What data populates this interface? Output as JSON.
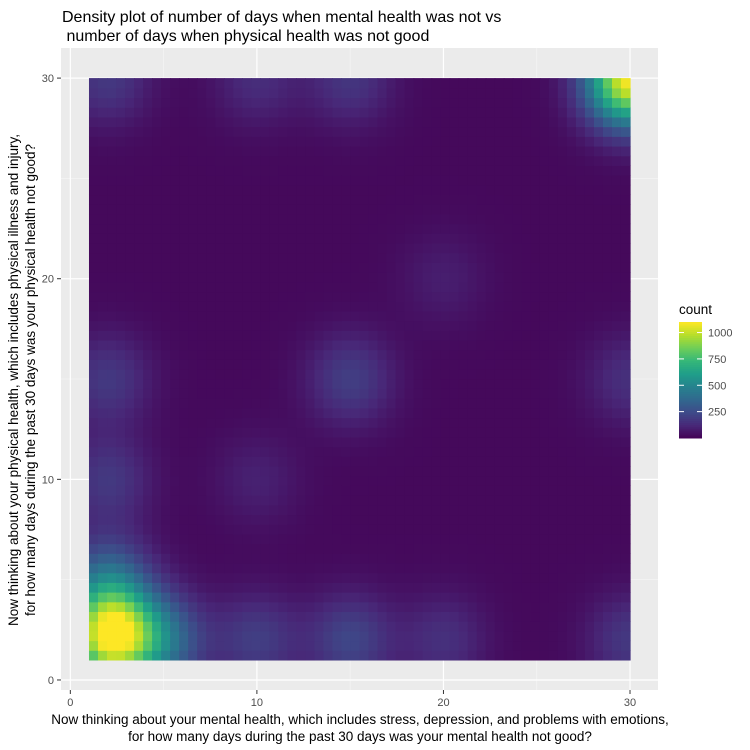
{
  "chart_data": {
    "type": "heatmap",
    "title": "Density plot of number of days when mental health was not vs\n number of days when physical health was not good",
    "xlabel": "Now thinking about your mental health, which includes stress, depression, and problems with emotions,\nfor how many days during the past 30 days was your mental health not good?",
    "ylabel": "Now thinking about your physical health, which includes physical illness and injury,\nfor how many days during the past 30 days was your physical health not good?",
    "xlim": [
      -0.5,
      31.5
    ],
    "ylim": [
      -0.5,
      31.5
    ],
    "x_ticks": [
      0,
      10,
      20,
      30
    ],
    "y_ticks": [
      0,
      10,
      20,
      30
    ],
    "data_extent": {
      "x": [
        1,
        30
      ],
      "y": [
        1,
        30
      ]
    },
    "grid": true,
    "colormap": "viridis",
    "legend": {
      "title": "count",
      "position": "right",
      "range": [
        0,
        1100
      ],
      "ticks": [
        250,
        500,
        750,
        1000
      ]
    },
    "density_peaks": [
      {
        "x": 2.2,
        "y": 2.2,
        "count": 1100
      },
      {
        "x": 30,
        "y": 30,
        "count": 1100
      },
      {
        "x": 5,
        "y": 2,
        "count": 350
      },
      {
        "x": 2,
        "y": 5,
        "count": 330
      },
      {
        "x": 2,
        "y": 10,
        "count": 180
      },
      {
        "x": 10,
        "y": 2,
        "count": 200
      },
      {
        "x": 15,
        "y": 2,
        "count": 230
      },
      {
        "x": 20,
        "y": 2,
        "count": 150
      },
      {
        "x": 30,
        "y": 2,
        "count": 180
      },
      {
        "x": 15,
        "y": 15,
        "count": 200
      },
      {
        "x": 2,
        "y": 15,
        "count": 180
      },
      {
        "x": 30,
        "y": 15,
        "count": 150
      },
      {
        "x": 2,
        "y": 30,
        "count": 180
      },
      {
        "x": 15,
        "y": 30,
        "count": 170
      },
      {
        "x": 10,
        "y": 30,
        "count": 140
      },
      {
        "x": 10,
        "y": 10,
        "count": 100
      },
      {
        "x": 20,
        "y": 20,
        "count": 90
      }
    ]
  }
}
